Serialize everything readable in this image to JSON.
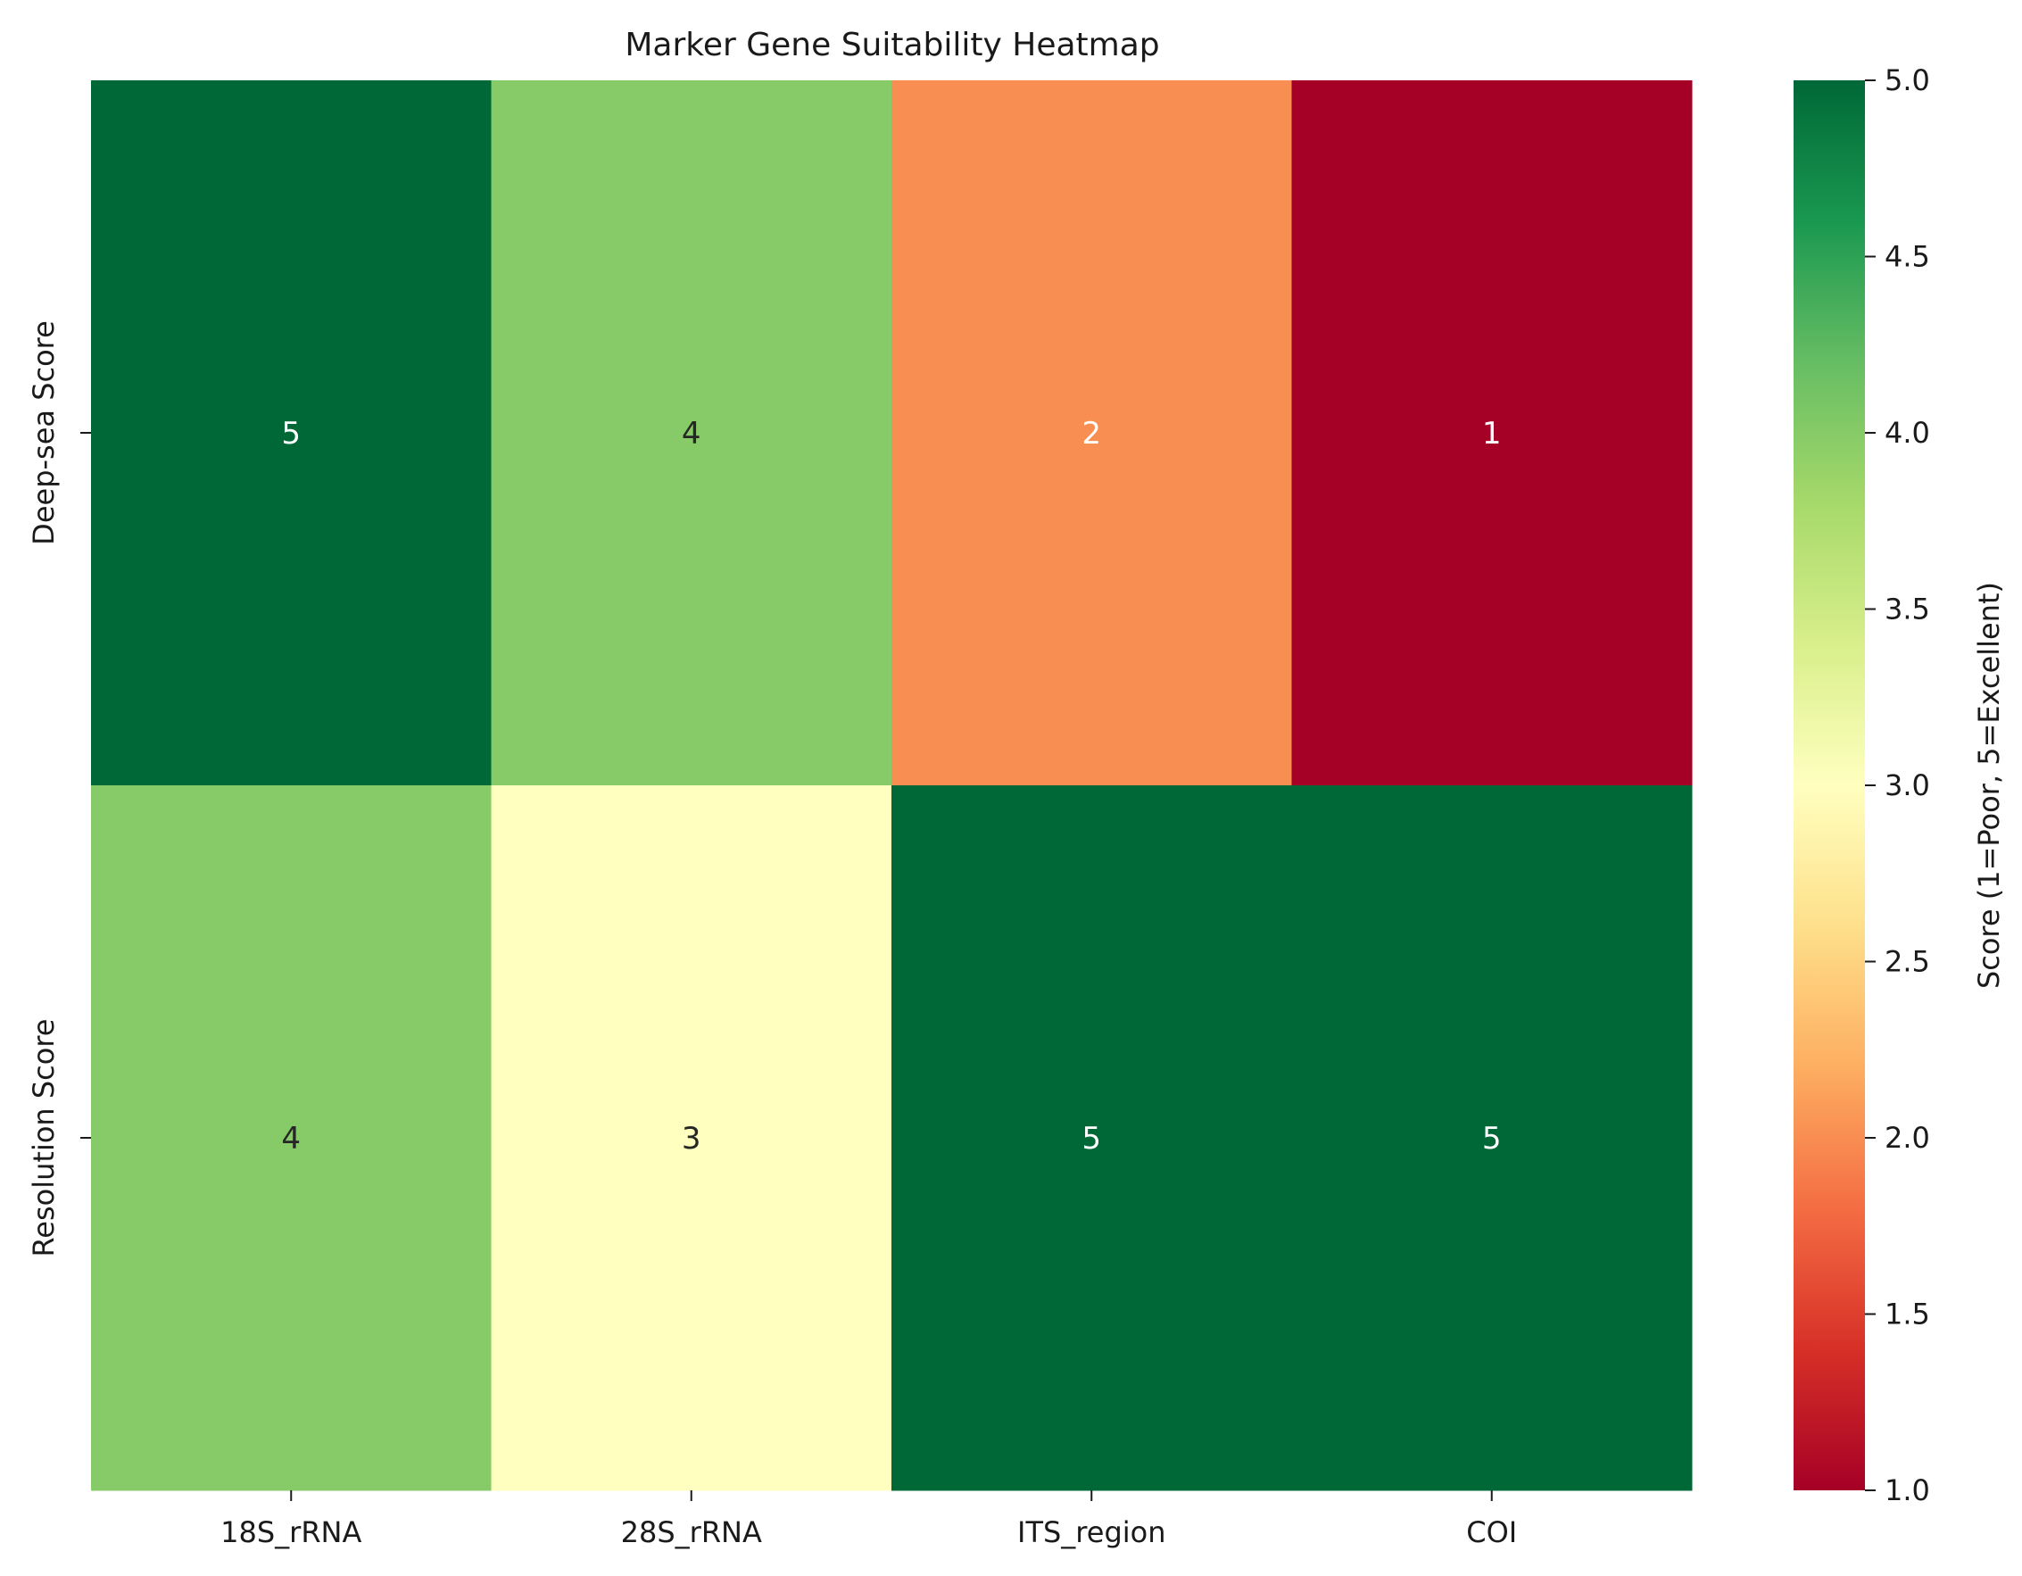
{
  "chart_data": {
    "type": "heatmap",
    "title": "Marker Gene Suitability Heatmap",
    "xlabel": "",
    "ylabel": "",
    "columns": [
      "18S_rRNA",
      "28S_rRNA",
      "ITS_region",
      "COI"
    ],
    "rows": [
      "Deep-sea Score",
      "Resolution Score"
    ],
    "values": [
      [
        5,
        4,
        2,
        1
      ],
      [
        4,
        3,
        5,
        5
      ]
    ],
    "colorbar": {
      "label": "Score (1=Poor, 5=Excellent)",
      "min": 1.0,
      "max": 5.0,
      "ticks": [
        "1.0",
        "1.5",
        "2.0",
        "2.5",
        "3.0",
        "3.5",
        "4.0",
        "4.5",
        "5.0"
      ],
      "colormap": "RdYlGn",
      "stops": [
        "#a50026",
        "#d73027",
        "#f46d43",
        "#fdae61",
        "#fee08b",
        "#ffffbf",
        "#d9ef8b",
        "#a6d96a",
        "#66bd63",
        "#1a9850",
        "#006837"
      ]
    }
  }
}
